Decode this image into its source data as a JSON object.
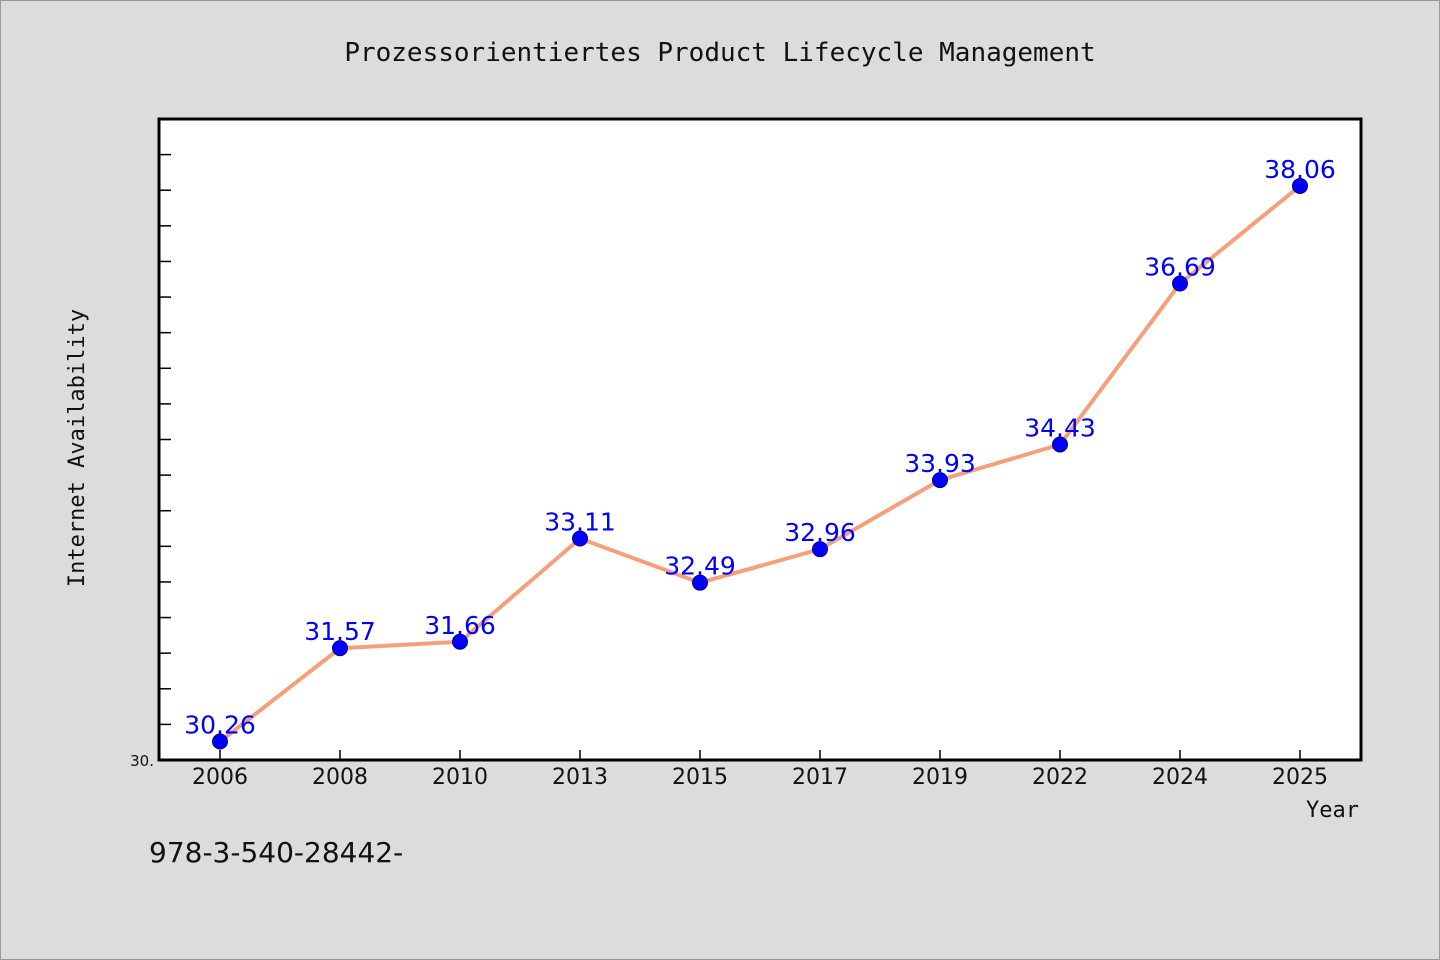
{
  "chart_data": {
    "type": "line",
    "title": "Prozessorientiertes Product Lifecycle Management",
    "xlabel": "Year",
    "ylabel": "Internet Availability",
    "categories": [
      "2006",
      "2008",
      "2010",
      "2013",
      "2015",
      "2017",
      "2019",
      "2022",
      "2024",
      "2025"
    ],
    "series": [
      {
        "values": [
          30.26,
          31.57,
          31.66,
          33.11,
          32.49,
          32.96,
          33.93,
          34.43,
          36.69,
          38.06
        ],
        "data_labels": [
          "30.26",
          "31.57",
          "31.66",
          "33.11",
          "32.49",
          "32.96",
          "33.93",
          "34.43",
          "36.69",
          "38.06"
        ],
        "line_color": "#f4a07a",
        "marker_color": "#0000ff"
      }
    ],
    "ylim": [
      30.0,
      39.0
    ],
    "y_tick_labels": [
      "30."
    ],
    "grid": false,
    "legend": "none"
  },
  "footer_text": "978-3-540-28442-",
  "colors": {
    "background": "#dcdcdc",
    "plot_background": "#ffffff",
    "line": "#f4a07a",
    "marker": "#0000ff",
    "data_label": "#0000ff"
  }
}
